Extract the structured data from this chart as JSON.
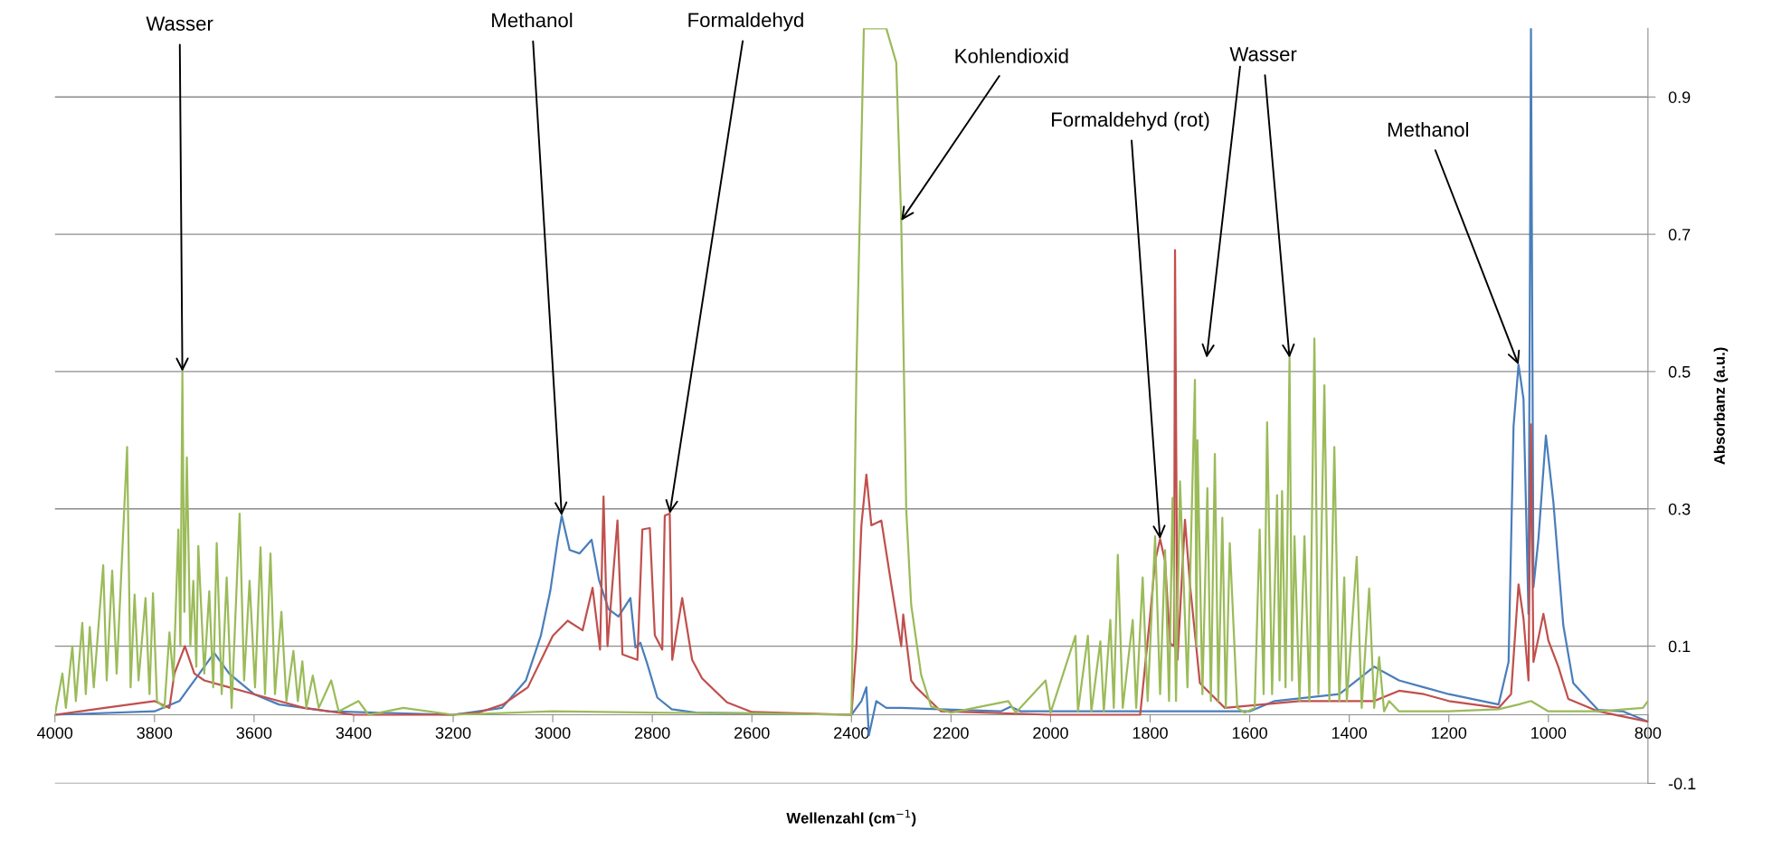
{
  "chart_data": {
    "type": "line",
    "xlabel": "Wellenzahl (cm$^{−1}$)",
    "ylabel": "Absorbanz (a.u.)",
    "xlim": [
      4000,
      800
    ],
    "xticks": [
      4000,
      3800,
      3600,
      3400,
      3200,
      3000,
      2800,
      2600,
      2400,
      2200,
      2000,
      1800,
      1600,
      1400,
      1200,
      1000,
      800
    ],
    "ylim": [
      -0.1,
      1.0
    ],
    "yticks": [
      -0.1,
      0.1,
      0.3,
      0.5,
      0.7,
      0.9
    ],
    "grid": "y",
    "legend": false,
    "marker": "none",
    "line_style": "solid",
    "series": [
      {
        "color": "#4a7ebb",
        "x": [
          4000,
          3800,
          3750,
          3720,
          3680,
          3650,
          3600,
          3550,
          3450,
          3200,
          3102,
          3054,
          3024,
          3005,
          2990,
          2982,
          2966,
          2946,
          2922,
          2907,
          2888,
          2868,
          2844,
          2834,
          2824,
          2810,
          2790,
          2761,
          2712,
          2400,
          2380,
          2370,
          2365,
          2350,
          2330,
          2300,
          2100,
          2080,
          2060,
          1600,
          1550,
          1420,
          1350,
          1300,
          1250,
          1200,
          1100,
          1080,
          1070,
          1060,
          1050,
          1040,
          1035,
          1030,
          1020,
          1005,
          990,
          970,
          950,
          900,
          850,
          800
        ],
        "values": [
          0.0,
          0.005,
          0.02,
          0.05,
          0.09,
          0.06,
          0.03,
          0.015,
          0.005,
          0.0,
          0.01,
          0.05,
          0.115,
          0.18,
          0.255,
          0.29,
          0.24,
          0.235,
          0.255,
          0.196,
          0.154,
          0.143,
          0.17,
          0.098,
          0.105,
          0.074,
          0.025,
          0.008,
          0.003,
          0.0,
          0.02,
          0.04,
          -0.03,
          0.02,
          0.01,
          0.01,
          0.005,
          0.012,
          0.005,
          0.005,
          0.02,
          0.03,
          0.07,
          0.05,
          0.04,
          0.03,
          0.015,
          0.077,
          0.42,
          0.51,
          0.46,
          0.147,
          1.0,
          0.186,
          0.256,
          0.407,
          0.31,
          0.13,
          0.046,
          0.007,
          0.005,
          -0.01
        ]
      },
      {
        "color": "#c0504d",
        "x": [
          4000,
          3900,
          3800,
          3770,
          3760,
          3739,
          3720,
          3700,
          3650,
          3600,
          3550,
          3500,
          3400,
          3200,
          3150,
          3100,
          3050,
          3000,
          2970,
          2940,
          2920,
          2905,
          2898,
          2890,
          2870,
          2860,
          2830,
          2820,
          2805,
          2795,
          2780,
          2775,
          2765,
          2760,
          2740,
          2720,
          2700,
          2650,
          2600,
          2400,
          2390,
          2380,
          2370,
          2360,
          2340,
          2320,
          2300,
          2296,
          2280,
          2270,
          2220,
          2000,
          1820,
          1800,
          1790,
          1780,
          1770,
          1760,
          1752,
          1750,
          1745,
          1730,
          1720,
          1700,
          1650,
          1500,
          1350,
          1300,
          1250,
          1200,
          1100,
          1075,
          1060,
          1050,
          1040,
          1035,
          1030,
          1010,
          1000,
          980,
          960,
          900,
          800
        ],
        "values": [
          0.0,
          0.01,
          0.02,
          0.01,
          0.06,
          0.1,
          0.06,
          0.05,
          0.04,
          0.03,
          0.02,
          0.01,
          0.0,
          0.0,
          0.003,
          0.015,
          0.04,
          0.115,
          0.137,
          0.123,
          0.185,
          0.095,
          0.318,
          0.1,
          0.283,
          0.088,
          0.08,
          0.27,
          0.272,
          0.116,
          0.095,
          0.29,
          0.293,
          0.08,
          0.17,
          0.08,
          0.053,
          0.018,
          0.004,
          0.0,
          0.1,
          0.276,
          0.35,
          0.276,
          0.283,
          0.19,
          0.1,
          0.146,
          0.05,
          0.04,
          0.005,
          0.0,
          0.0,
          0.144,
          0.224,
          0.256,
          0.224,
          0.104,
          0.1,
          0.677,
          0.08,
          0.284,
          0.19,
          0.046,
          0.01,
          0.02,
          0.02,
          0.035,
          0.03,
          0.02,
          0.01,
          0.03,
          0.19,
          0.14,
          0.05,
          0.423,
          0.077,
          0.147,
          0.108,
          0.07,
          0.023,
          0.005,
          -0.01
        ]
      },
      {
        "color": "#9bbb59",
        "x": [
          4000,
          3985,
          3978,
          3965,
          3958,
          3945,
          3938,
          3930,
          3922,
          3903,
          3896,
          3885,
          3876,
          3855,
          3848,
          3840,
          3832,
          3818,
          3810,
          3803,
          3795,
          3780,
          3770,
          3762,
          3752,
          3748,
          3744,
          3740,
          3735,
          3728,
          3722,
          3716,
          3712,
          3700,
          3690,
          3682,
          3675,
          3665,
          3655,
          3645,
          3629,
          3620,
          3609,
          3598,
          3587,
          3578,
          3567,
          3558,
          3545,
          3535,
          3521,
          3512,
          3503,
          3495,
          3482,
          3470,
          3445,
          3430,
          3390,
          3370,
          3300,
          3200,
          3000,
          2800,
          2600,
          2400,
          2390,
          2375,
          2330,
          2310,
          2300,
          2296,
          2290,
          2280,
          2260,
          2240,
          2200,
          2085,
          2070,
          2010,
          2000,
          1950,
          1945,
          1925,
          1918,
          1900,
          1893,
          1880,
          1873,
          1865,
          1855,
          1835,
          1828,
          1815,
          1805,
          1790,
          1780,
          1770,
          1762,
          1755,
          1748,
          1740,
          1725,
          1710,
          1707,
          1705,
          1695,
          1685,
          1678,
          1670,
          1663,
          1655,
          1648,
          1640,
          1625,
          1610,
          1590,
          1580,
          1572,
          1565,
          1555,
          1545,
          1540,
          1535,
          1528,
          1520,
          1515,
          1510,
          1500,
          1490,
          1480,
          1470,
          1462,
          1450,
          1440,
          1430,
          1420,
          1410,
          1405,
          1385,
          1375,
          1360,
          1350,
          1340,
          1330,
          1320,
          1300,
          1200,
          1100,
          1060,
          1035,
          1000,
          900,
          810,
          800
        ],
        "values": [
          0.0,
          0.06,
          0.01,
          0.1,
          0.02,
          0.134,
          0.03,
          0.128,
          0.04,
          0.218,
          0.05,
          0.21,
          0.06,
          0.39,
          0.04,
          0.175,
          0.05,
          0.17,
          0.03,
          0.177,
          0.02,
          0.01,
          0.12,
          0.05,
          0.27,
          0.1,
          0.5,
          0.15,
          0.375,
          0.1,
          0.195,
          0.07,
          0.246,
          0.06,
          0.18,
          0.04,
          0.25,
          0.03,
          0.2,
          0.01,
          0.293,
          0.05,
          0.195,
          0.04,
          0.244,
          0.03,
          0.235,
          0.03,
          0.15,
          0.02,
          0.093,
          0.02,
          0.078,
          0.01,
          0.057,
          0.01,
          0.05,
          0.005,
          0.02,
          0.0,
          0.01,
          0.0,
          0.005,
          0.003,
          0.002,
          0.0,
          0.5,
          1.0,
          1.0,
          0.95,
          0.72,
          0.56,
          0.3,
          0.16,
          0.058,
          0.012,
          0.003,
          0.02,
          0.003,
          0.05,
          0.003,
          0.115,
          0.005,
          0.115,
          0.005,
          0.107,
          0.005,
          0.138,
          0.01,
          0.233,
          0.01,
          0.138,
          0.01,
          0.2,
          0.02,
          0.26,
          0.03,
          0.24,
          0.02,
          0.316,
          0.02,
          0.34,
          0.04,
          0.488,
          0.1,
          0.4,
          0.03,
          0.33,
          0.02,
          0.38,
          0.02,
          0.287,
          0.01,
          0.25,
          0.01,
          0.003,
          0.01,
          0.27,
          0.03,
          0.426,
          0.03,
          0.32,
          0.05,
          0.326,
          0.04,
          0.52,
          0.05,
          0.26,
          0.02,
          0.26,
          0.02,
          0.548,
          0.03,
          0.48,
          0.02,
          0.39,
          0.02,
          0.2,
          0.02,
          0.23,
          0.01,
          0.184,
          0.01,
          0.084,
          0.005,
          0.02,
          0.005,
          0.005,
          0.008,
          0.015,
          0.02,
          0.005,
          0.005,
          0.01,
          0.02
        ]
      }
    ],
    "annotations": [
      {
        "text": "Wasser",
        "x": 3744,
        "y": 0.5
      },
      {
        "text": "Methanol",
        "x": 2982,
        "y": 0.29
      },
      {
        "text": "Formaldehyd",
        "x": 2765,
        "y": 0.293
      },
      {
        "text": "Kohlendioxid",
        "x": 2300,
        "y": 0.72
      },
      {
        "text": "Formaldehyd (rot)",
        "x": 1780,
        "y": 0.256
      },
      {
        "text": "Wasser",
        "x": 1520,
        "y": 0.52
      },
      {
        "text": "Methanol",
        "x": 1060,
        "y": 0.51
      }
    ]
  }
}
